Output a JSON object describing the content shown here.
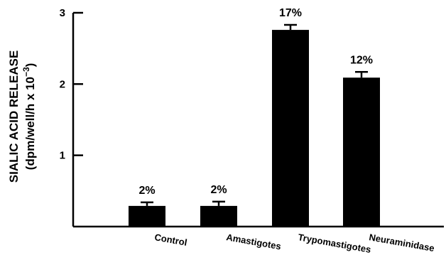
{
  "chart_data": {
    "type": "bar",
    "categories": [
      "Control",
      "Amastigotes",
      "Trypomastigotes",
      "Neuraminidase"
    ],
    "values": [
      0.29,
      0.29,
      2.76,
      2.09
    ],
    "errors": [
      0.05,
      0.06,
      0.07,
      0.08
    ],
    "data_labels": [
      "2%",
      "2%",
      "17%",
      "12%"
    ],
    "ylabel_line1": "SIALIC ACID RELEASE",
    "ylabel_line2": "(dpm/well/h x 10",
    "ylabel_exp": "−3",
    "ylabel_close": ")",
    "ylim": [
      0,
      3
    ],
    "yticks": [
      1,
      2,
      3
    ],
    "ytick_labels": [
      "1",
      "2",
      "3"
    ],
    "bar_color": "#000000",
    "grid": false
  }
}
